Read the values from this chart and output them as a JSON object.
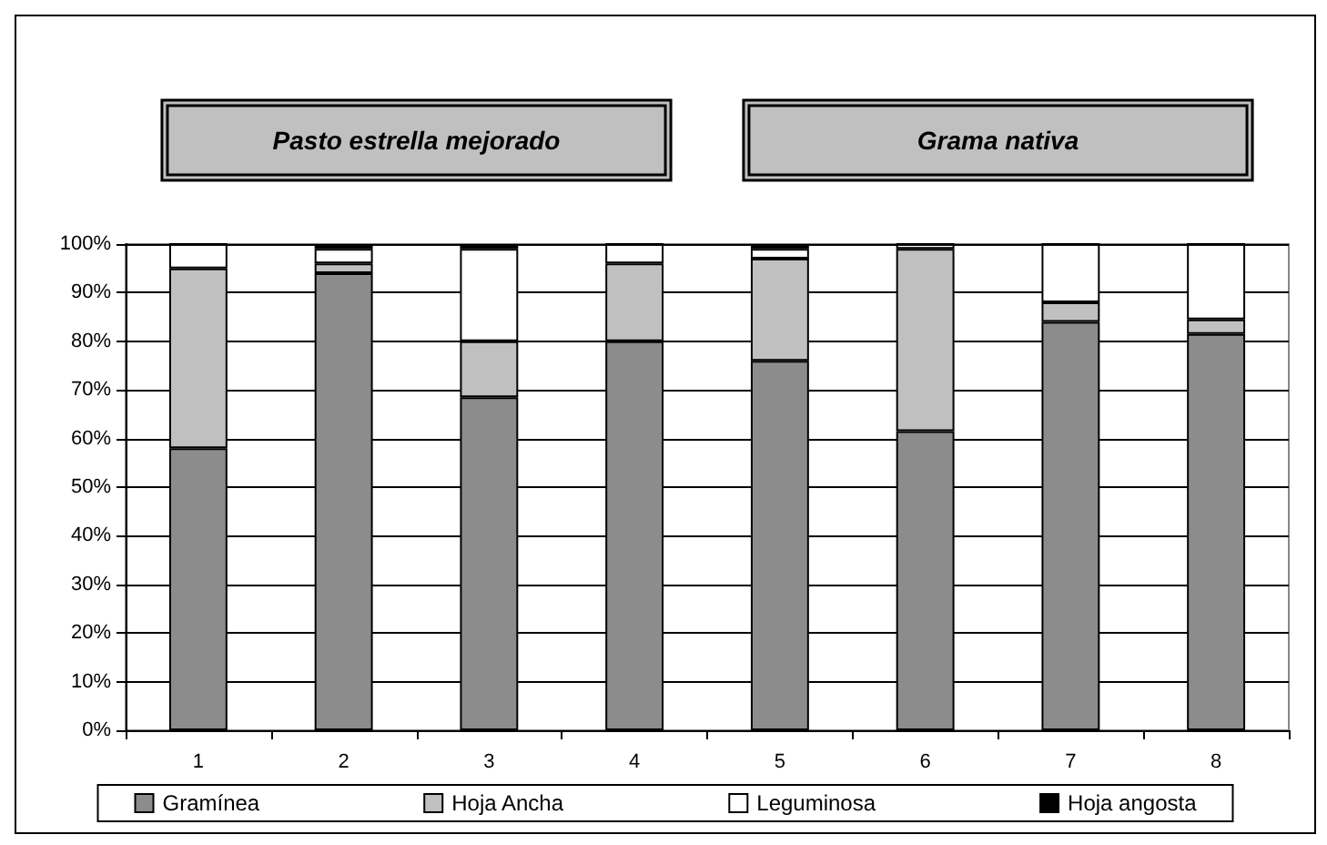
{
  "chart_data": {
    "type": "bar",
    "stacked": true,
    "categories": [
      "1",
      "2",
      "3",
      "4",
      "5",
      "6",
      "7",
      "8"
    ],
    "series": [
      {
        "name": "Gramínea",
        "color": "#8c8c8c",
        "values": [
          58,
          94,
          68.5,
          80,
          76,
          61.5,
          84,
          81.5
        ]
      },
      {
        "name": "Hoja Ancha",
        "color": "#c0c0c0",
        "values": [
          37,
          2,
          11.5,
          16,
          21,
          37.5,
          4,
          3
        ]
      },
      {
        "name": "Leguminosa",
        "color": "#ffffff",
        "values": [
          5,
          3,
          19,
          4,
          2,
          1,
          12,
          15.5
        ]
      },
      {
        "name": "Hoja angosta",
        "color": "#000000",
        "values": [
          0,
          1,
          1,
          0,
          1,
          0,
          0,
          0
        ]
      }
    ],
    "annotations": [
      "Pasto estrella mejorado",
      "Grama nativa"
    ],
    "ylim": [
      0,
      100
    ],
    "yticks": [
      {
        "value": 0,
        "label": "0%"
      },
      {
        "value": 10,
        "label": "10%"
      },
      {
        "value": 20,
        "label": "20%"
      },
      {
        "value": 30,
        "label": "30%"
      },
      {
        "value": 40,
        "label": "40%"
      },
      {
        "value": 50,
        "label": "50%"
      },
      {
        "value": 60,
        "label": "60%"
      },
      {
        "value": 70,
        "label": "70%"
      },
      {
        "value": 80,
        "label": "80%"
      },
      {
        "value": 90,
        "label": "90%"
      },
      {
        "value": 100,
        "label": "100%"
      }
    ],
    "grid": "y",
    "legend": "bottom"
  }
}
